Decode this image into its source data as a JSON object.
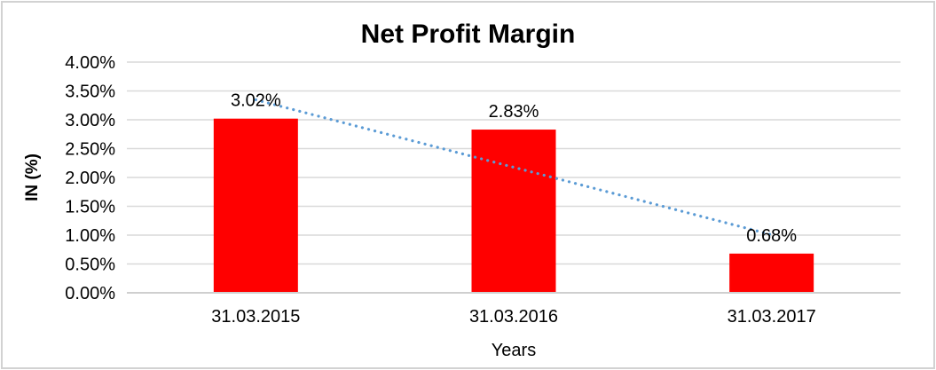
{
  "chart_data": {
    "type": "bar",
    "title": "Net Profit Margin",
    "xlabel": "Years",
    "ylabel": "IN (%)",
    "categories": [
      "31.03.2015",
      "31.03.2016",
      "31.03.2017"
    ],
    "values": [
      3.02,
      2.83,
      0.68
    ],
    "data_labels": [
      "3.02%",
      "2.83%",
      "0.68%"
    ],
    "ylim": [
      0,
      4
    ],
    "ytick_step": 0.5,
    "ytick_labels": [
      "4.00%",
      "3.50%",
      "3.00%",
      "2.50%",
      "2.00%",
      "1.50%",
      "1.00%",
      "0.50%",
      "0.00%"
    ],
    "grid": true,
    "legend": "none",
    "bar_color": "#FF0000",
    "gridline_color": "#D9D9D9",
    "axis_line_color": "#BFBFBF",
    "text_color": "#000000",
    "trendline": {
      "type": "linear",
      "style": "dotted",
      "color": "#5B9BD5"
    }
  }
}
